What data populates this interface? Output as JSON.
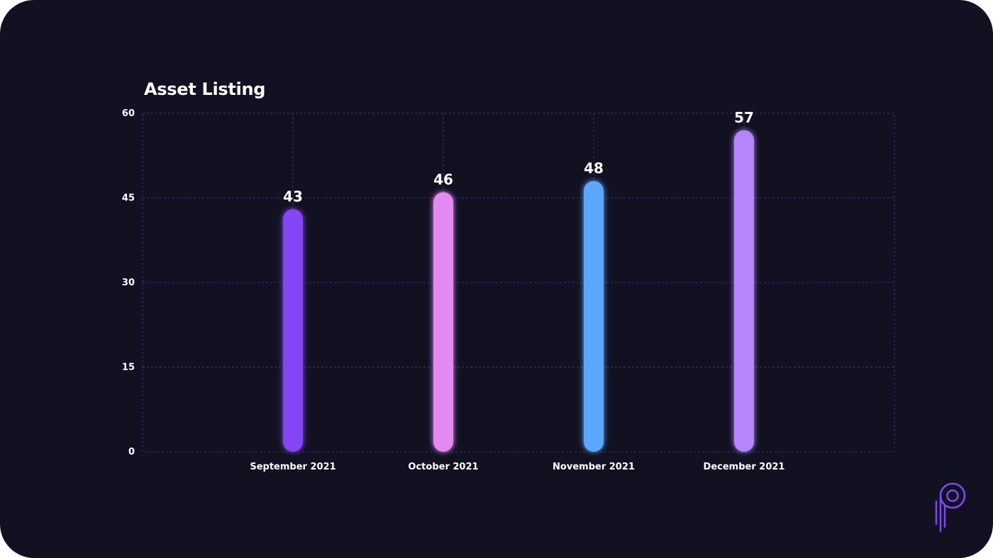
{
  "chart_data": {
    "type": "bar",
    "title": "Asset Listing",
    "categories": [
      "September 2021",
      "October 2021",
      "November 2021",
      "December 2021"
    ],
    "values": [
      43,
      46,
      48,
      57
    ],
    "data_labels": [
      "43",
      "46",
      "48",
      "57"
    ],
    "bar_colors": [
      "#8444f4",
      "#e28af2",
      "#5ca6ff",
      "#b485fb"
    ],
    "ylim": [
      0,
      60
    ],
    "yticks": [
      0,
      15,
      30,
      45,
      60
    ],
    "ytick_labels": [
      "0",
      "15",
      "30",
      "45",
      "60"
    ],
    "xlabel": "",
    "ylabel": "",
    "grid": true,
    "legend": false
  },
  "colors": {
    "background": "#111122",
    "grid": "#39386d",
    "text": "#ffffff",
    "logo": "#7e47ee"
  },
  "logo": {
    "icon": "brand-p-logo-icon"
  }
}
